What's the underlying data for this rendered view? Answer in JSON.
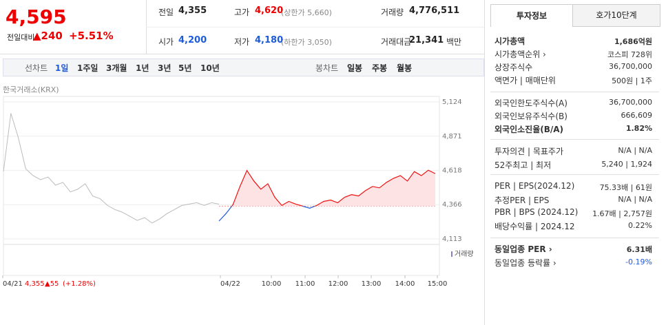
{
  "header": {
    "price": "4,595",
    "change_label": "전일대비",
    "change": "▲240",
    "change_pct": "+5.51%",
    "stats": [
      {
        "label": "전일",
        "value": "4,355"
      },
      {
        "label": "고가",
        "value": "4,620",
        "note": "(상한가 5,660)"
      },
      {
        "label": "거래량",
        "value": "4,776,511"
      },
      {
        "label": "시가",
        "value": "4,200"
      },
      {
        "label": "저가",
        "value": "4,180",
        "note": "(하한가 3,050)"
      },
      {
        "label": "거래대금",
        "value": "21,341",
        "unit": "백만"
      }
    ]
  },
  "toolbar": {
    "line_label": "선차트",
    "line_periods": [
      "1일",
      "1주일",
      "3개월",
      "1년",
      "3년",
      "5년",
      "10년"
    ],
    "candle_label": "봉차트",
    "candle_periods": [
      "일봉",
      "주봉",
      "월봉"
    ]
  },
  "chart_data": {
    "type": "line",
    "source": "한국거래소(KRX)",
    "volume_label": "거래량",
    "ylim": [
      4113,
      5124
    ],
    "yticks": [
      {
        "value": 4113,
        "label": "4,113"
      },
      {
        "value": 4366,
        "label": "4,366"
      },
      {
        "value": 4618,
        "label": "4,618"
      },
      {
        "value": 4871,
        "label": "4,871"
      },
      {
        "value": 5124,
        "label": "5,124"
      }
    ],
    "baseline": 4355,
    "xlabels": [
      "04/21",
      "04/22",
      "10:00",
      "11:00",
      "12:00",
      "13:00",
      "14:00",
      "15:00"
    ],
    "prev_close": "4,355",
    "prev_change": "▲55",
    "prev_pct": "(+1.28%)",
    "series": [
      {
        "color": "#bbbbbb",
        "values": [
          4610,
          5040,
          4860,
          4630,
          4580,
          4550,
          4570,
          4510,
          4530,
          4460,
          4480,
          4520,
          4430,
          4410,
          4360,
          4330,
          4310,
          4280,
          4250,
          4270,
          4230,
          4260,
          4300,
          4330,
          4360,
          4370,
          4380,
          4360,
          4380,
          4370
        ]
      },
      {
        "color": "#f01010",
        "down_color": "#1e5bd8",
        "fill": "#fde3e3",
        "values": [
          4245,
          4300,
          4366,
          4500,
          4618,
          4540,
          4480,
          4520,
          4420,
          4360,
          4390,
          4370,
          4355,
          4340,
          4360,
          4390,
          4400,
          4380,
          4420,
          4440,
          4430,
          4470,
          4500,
          4490,
          4530,
          4560,
          4580,
          4540,
          4610,
          4580,
          4620,
          4595
        ]
      }
    ]
  },
  "invest": {
    "tabs": [
      "투자정보",
      "호가10단계"
    ],
    "rows": [
      {
        "label": "시가총액",
        "value": "1,686억원"
      },
      {
        "label": "시가총액순위 ›",
        "value": "코스피 728위"
      },
      {
        "label": "상장주식수",
        "value": "36,700,000"
      },
      {
        "label": "액면가 | 매매단위",
        "value": "500원 | 1주"
      },
      {
        "label": "외국인한도주식수(A)",
        "value": "36,700,000"
      },
      {
        "label": "외국인보유주식수(B)",
        "value": "666,609"
      },
      {
        "label": "외국인소진율(B/A)",
        "value": "1.82%"
      },
      {
        "label": "투자의견 | 목표주가",
        "value": "N/A | N/A"
      },
      {
        "label": "52주최고 | 최저",
        "value": "5,240 | 1,924"
      },
      {
        "label": "PER | EPS(2024.12)",
        "value": "75.33배 | 61원"
      },
      {
        "label": "추정PER | EPS",
        "value": "N/A | N/A"
      },
      {
        "label": "PBR | BPS (2024.12)",
        "value": "1.67배 | 2,757원"
      },
      {
        "label": "배당수익률 | 2024.12",
        "value": "0.22%"
      },
      {
        "label": "동일업종 PER ›",
        "value": "6.31배"
      },
      {
        "label": "동일업종 등락률 ›",
        "value": "-0.19%"
      }
    ]
  }
}
